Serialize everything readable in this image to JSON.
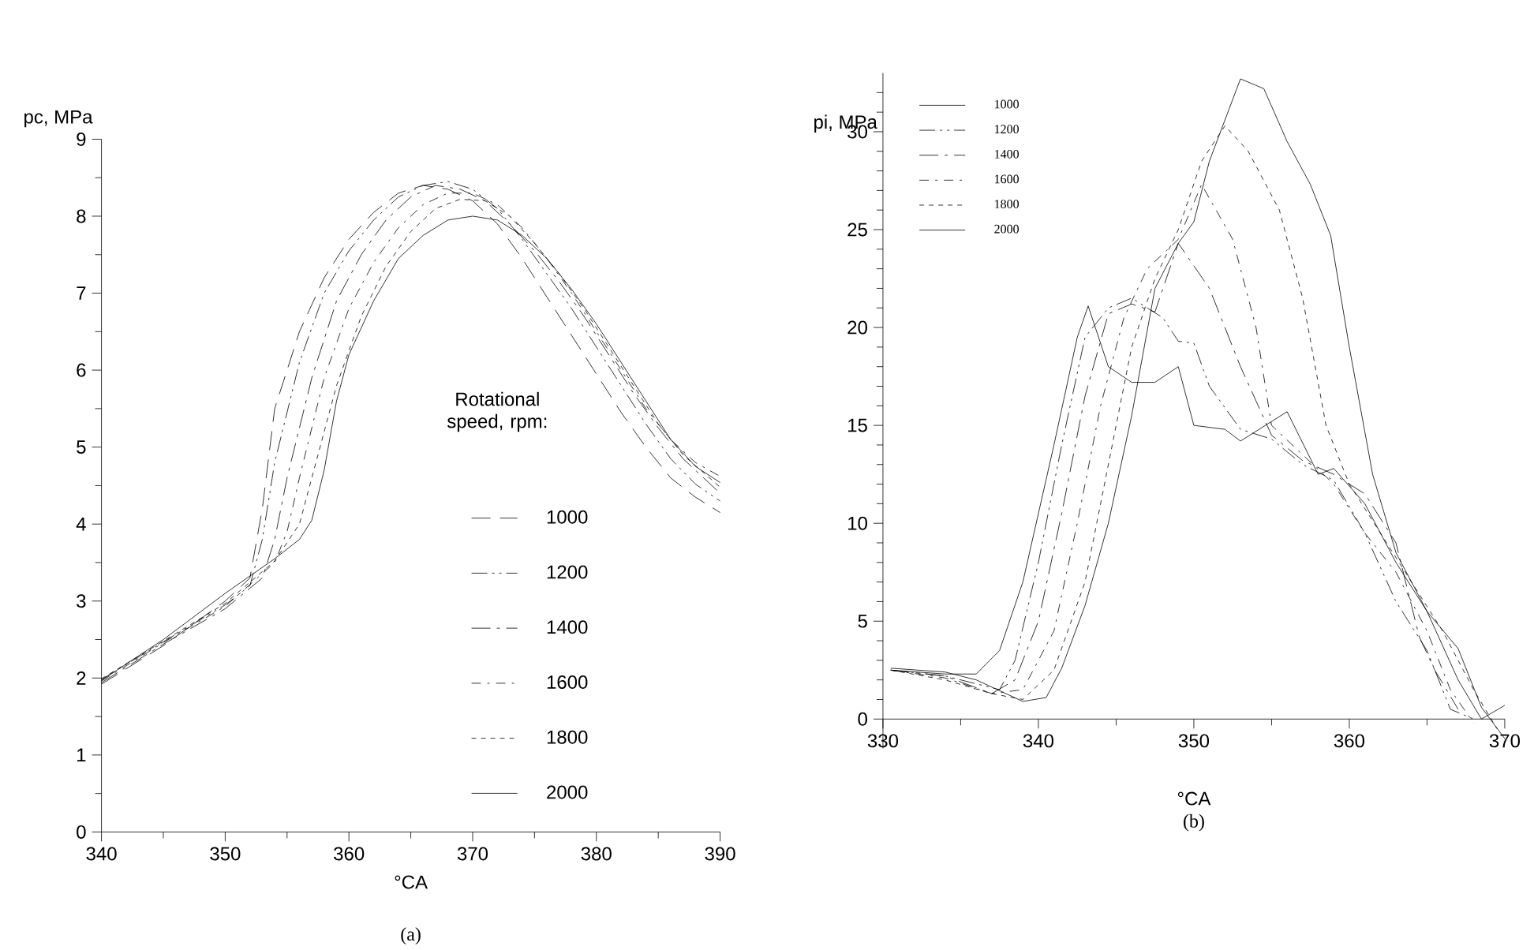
{
  "chart_data": [
    {
      "type": "line",
      "xlabel": "°CA",
      "ylabel": "pc, MPa",
      "legend_title": "Rotational speed, rpm:",
      "legend": "bottom right",
      "annotations": [
        "(a)"
      ],
      "xlim": [
        340,
        390
      ],
      "ylim": [
        0,
        9
      ],
      "xticks": [
        340,
        {
          "value": 345,
          "label": null
        },
        350,
        {
          "value": 355,
          "label": null
        },
        360,
        {
          "value": 365,
          "label": null
        },
        370,
        {
          "value": 375,
          "label": null
        },
        380,
        {
          "value": 385,
          "label": null
        },
        390
      ],
      "yticks": [
        0,
        {
          "value": 0.5,
          "label": null
        },
        1,
        {
          "value": 1.5,
          "label": null
        },
        2,
        {
          "value": 2.5,
          "label": null
        },
        3,
        {
          "value": 3.5,
          "label": null
        },
        4,
        {
          "value": 4.5,
          "label": null
        },
        5,
        {
          "value": 5.5,
          "label": null
        },
        6,
        {
          "value": 6.5,
          "label": null
        },
        7,
        {
          "value": 7.5,
          "label": null
        },
        8,
        {
          "value": 8.5,
          "label": null
        },
        9
      ],
      "series": [
        {
          "name": "1000",
          "color": "#000000",
          "line_style": "dashed",
          "x": [
            340,
            345,
            350,
            352,
            353,
            354,
            356,
            358,
            360,
            362,
            364,
            366,
            368,
            370,
            372,
            374,
            376,
            378,
            380,
            382,
            384,
            386,
            388,
            390
          ],
          "values": [
            1.92,
            2.42,
            3.0,
            3.3,
            4.2,
            5.5,
            6.5,
            7.2,
            7.7,
            8.05,
            8.3,
            8.4,
            8.35,
            8.2,
            7.9,
            7.45,
            6.95,
            6.45,
            5.95,
            5.45,
            5.0,
            4.6,
            4.35,
            4.15
          ]
        },
        {
          "name": "1200",
          "color": "#000000",
          "line_style": "dashed",
          "x": [
            340,
            345,
            350,
            352,
            353,
            354,
            356,
            358,
            360,
            362,
            364,
            366,
            368,
            370,
            372,
            374,
            376,
            378,
            380,
            382,
            384,
            386,
            388,
            390
          ],
          "values": [
            1.98,
            2.47,
            2.95,
            3.2,
            3.8,
            4.8,
            6.1,
            7.0,
            7.55,
            7.95,
            8.25,
            8.4,
            8.45,
            8.35,
            8.1,
            7.7,
            7.25,
            6.8,
            6.3,
            5.8,
            5.3,
            4.85,
            4.52,
            4.3
          ]
        },
        {
          "name": "1400",
          "color": "#000000",
          "line_style": "dashed",
          "x": [
            340,
            345,
            350,
            353,
            354,
            355,
            357,
            359,
            361,
            363,
            365,
            367,
            369,
            371,
            373,
            375,
            377,
            379,
            381,
            383,
            385,
            387,
            390
          ],
          "values": [
            1.94,
            2.44,
            2.9,
            3.3,
            3.8,
            4.6,
            5.9,
            6.9,
            7.5,
            7.95,
            8.25,
            8.4,
            8.35,
            8.2,
            7.9,
            7.55,
            7.15,
            6.7,
            6.2,
            5.7,
            5.25,
            4.85,
            4.4
          ]
        },
        {
          "name": "1600",
          "color": "#000000",
          "line_style": "dashed",
          "x": [
            340,
            345,
            350,
            354,
            355,
            356,
            358,
            360,
            362,
            364,
            366,
            368,
            370,
            372,
            374,
            376,
            378,
            380,
            382,
            384,
            386,
            388,
            390
          ],
          "values": [
            1.96,
            2.46,
            2.93,
            3.5,
            3.9,
            4.6,
            5.9,
            6.8,
            7.4,
            7.85,
            8.15,
            8.3,
            8.3,
            8.15,
            7.85,
            7.45,
            7.0,
            6.5,
            6.0,
            5.5,
            5.1,
            4.8,
            4.62
          ]
        },
        {
          "name": "1800",
          "color": "#000000",
          "line_style": "dashed",
          "x": [
            340,
            345,
            350,
            354,
            356,
            357,
            359,
            361,
            363,
            365,
            367,
            369,
            371,
            373,
            375,
            377,
            379,
            381,
            383,
            385,
            387,
            390
          ],
          "values": [
            1.99,
            2.48,
            2.97,
            3.52,
            4.0,
            4.6,
            5.8,
            6.7,
            7.35,
            7.8,
            8.1,
            8.22,
            8.2,
            8.0,
            7.65,
            7.25,
            6.8,
            6.3,
            5.8,
            5.3,
            4.9,
            4.48
          ]
        },
        {
          "name": "2000",
          "color": "#000000",
          "line_style": "solid",
          "x": [
            340,
            345,
            350,
            354,
            356,
            357,
            358,
            359,
            360,
            362,
            364,
            366,
            368,
            370,
            372,
            374,
            376,
            378,
            380,
            382,
            384,
            386,
            388,
            390
          ],
          "values": [
            1.97,
            2.5,
            3.1,
            3.55,
            3.8,
            4.05,
            4.7,
            5.6,
            6.2,
            6.9,
            7.45,
            7.75,
            7.95,
            8.0,
            7.95,
            7.75,
            7.45,
            7.05,
            6.6,
            6.1,
            5.6,
            5.1,
            4.75,
            4.54
          ]
        }
      ]
    },
    {
      "type": "line",
      "xlabel": "°CA",
      "ylabel": "pi, MPa",
      "legend": "top left",
      "annotations": [
        "(b)"
      ],
      "xlim": [
        330,
        370
      ],
      "ylim": [
        -1.5,
        33
      ],
      "xticks": [
        330,
        {
          "value": 335,
          "label": null
        },
        340,
        {
          "value": 345,
          "label": null
        },
        350,
        {
          "value": 355,
          "label": null
        },
        360,
        {
          "value": 365,
          "label": null
        },
        370
      ],
      "yticks": [
        0,
        {
          "value": 1,
          "label": null
        },
        {
          "value": 2,
          "label": null
        },
        {
          "value": 3,
          "label": null
        },
        {
          "value": 4,
          "label": null
        },
        5,
        {
          "value": 6,
          "label": null
        },
        {
          "value": 7,
          "label": null
        },
        {
          "value": 8,
          "label": null
        },
        {
          "value": 9,
          "label": null
        },
        10,
        {
          "value": 11,
          "label": null
        },
        {
          "value": 12,
          "label": null
        },
        {
          "value": 13,
          "label": null
        },
        {
          "value": 14,
          "label": null
        },
        15,
        {
          "value": 16,
          "label": null
        },
        {
          "value": 17,
          "label": null
        },
        {
          "value": 18,
          "label": null
        },
        {
          "value": 19,
          "label": null
        },
        20,
        {
          "value": 21,
          "label": null
        },
        {
          "value": 22,
          "label": null
        },
        {
          "value": 23,
          "label": null
        },
        {
          "value": 24,
          "label": null
        },
        25,
        {
          "value": 26,
          "label": null
        },
        {
          "value": 27,
          "label": null
        },
        {
          "value": 28,
          "label": null
        },
        {
          "value": 29,
          "label": null
        },
        30,
        {
          "value": 31,
          "label": null
        },
        {
          "value": 32,
          "label": null
        }
      ],
      "series": [
        {
          "name": "1000",
          "color": "#000000",
          "line_style": "solid",
          "x": [
            330.5,
            334,
            336,
            337.5,
            339,
            341,
            342.5,
            343.2,
            344.5,
            346,
            347.5,
            349,
            350,
            352,
            353,
            356,
            358,
            359,
            361,
            363,
            365,
            367,
            368.5,
            370
          ],
          "values": [
            2.5,
            2.3,
            2.3,
            3.5,
            7,
            14,
            19.5,
            21.1,
            18,
            17.2,
            17.2,
            18,
            15,
            14.8,
            14.2,
            15.7,
            12.5,
            12.8,
            11,
            8,
            5.5,
            2,
            0,
            0.7
          ]
        },
        {
          "name": "1200",
          "color": "#000000",
          "line_style": "dashed",
          "x": [
            330.5,
            334,
            336,
            337.5,
            338.5,
            340,
            341.5,
            343,
            344.5,
            346,
            348,
            349,
            350,
            351,
            353,
            355,
            357,
            359,
            361,
            363,
            365,
            366.5,
            368
          ],
          "values": [
            2.5,
            2.2,
            1.8,
            1.5,
            3,
            8,
            14,
            19.5,
            21,
            21.5,
            20.5,
            19.3,
            19.2,
            17,
            14.8,
            14.3,
            13,
            12.2,
            9.5,
            6,
            3.5,
            0.5,
            0
          ]
        },
        {
          "name": "1400",
          "color": "#000000",
          "line_style": "dashed",
          "x": [
            330.5,
            334,
            337,
            338.5,
            340,
            341.5,
            343,
            344.5,
            346,
            347.5,
            349,
            351,
            353,
            355,
            357,
            359,
            361,
            363,
            364.5,
            365.5,
            367
          ],
          "values": [
            2.5,
            2.2,
            1.3,
            2,
            5,
            10.5,
            16.5,
            20.7,
            21.2,
            20.8,
            24.3,
            22,
            18,
            14.5,
            13.2,
            12.5,
            11.5,
            9,
            4.2,
            2.5,
            0.5
          ]
        },
        {
          "name": "1600",
          "color": "#000000",
          "line_style": "dashed",
          "x": [
            330.5,
            334,
            337,
            339,
            341,
            342.5,
            344,
            345.5,
            347,
            349,
            350.5,
            352.5,
            354,
            355,
            357,
            359,
            361,
            363,
            365,
            366.5,
            368
          ],
          "values": [
            2.5,
            2.1,
            1.3,
            1.5,
            4.5,
            10,
            16,
            20.5,
            23,
            24.5,
            27.3,
            24.5,
            20,
            15,
            13.5,
            12,
            9.5,
            7.5,
            4.5,
            1.5,
            -0.2
          ]
        },
        {
          "name": "1800",
          "color": "#000000",
          "line_style": "dashed",
          "x": [
            330.5,
            334,
            337,
            339,
            341,
            343,
            344.5,
            346,
            347.5,
            349,
            350.5,
            352,
            353.5,
            355.5,
            357,
            358.5,
            360,
            362,
            364,
            366,
            368,
            369.5
          ],
          "values": [
            2.5,
            2.0,
            1.3,
            1.0,
            2.5,
            7,
            13,
            19,
            22.5,
            25,
            28.5,
            30.3,
            29,
            26,
            21.5,
            15,
            12,
            9.5,
            7,
            4.5,
            1.5,
            -0.5
          ]
        },
        {
          "name": "2000",
          "color": "#000000",
          "line_style": "solid",
          "x": [
            330.5,
            334,
            336,
            339,
            340.5,
            341.5,
            343,
            344.5,
            346,
            347.5,
            349,
            350,
            351,
            353,
            354.5,
            356,
            357.5,
            358.8,
            360,
            361.5,
            363,
            365,
            367,
            368.5,
            370
          ],
          "values": [
            2.6,
            2.4,
            2.0,
            0.9,
            1.1,
            2.6,
            5.8,
            10,
            15.5,
            22,
            24.3,
            25.4,
            28.5,
            32.7,
            32.2,
            29.5,
            27.3,
            24.7,
            19,
            12.5,
            8.5,
            5.5,
            3.6,
            0.6,
            -1.0
          ]
        }
      ]
    }
  ]
}
